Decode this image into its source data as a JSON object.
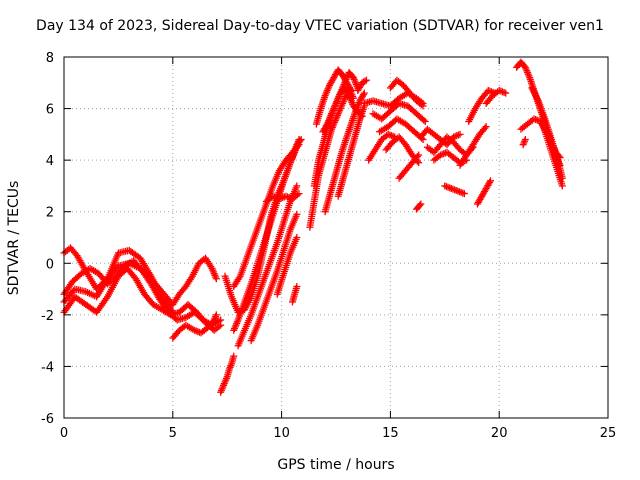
{
  "chart_data": {
    "type": "scatter",
    "title": "Day 134 of 2023, Sidereal Day-to-day VTEC variation (SDTVAR) for receiver ven1",
    "xlabel": "GPS time / hours",
    "ylabel": "SDTVAR / TECUs",
    "xlim": [
      0,
      25
    ],
    "ylim": [
      -6,
      8
    ],
    "x_ticks": [
      0,
      5,
      10,
      15,
      20,
      25
    ],
    "x_tick_labels": [
      "0",
      "5",
      "10",
      "15",
      "20",
      "25"
    ],
    "y_ticks": [
      -6,
      -4,
      -2,
      0,
      2,
      4,
      6,
      8
    ],
    "y_tick_labels": [
      "-6",
      "-4",
      "-2",
      "0",
      "2",
      "4",
      "6",
      "8"
    ],
    "grid": true,
    "grid_style": "dotted",
    "marker": "plus",
    "series_color": "#ff0000",
    "series": [
      {
        "tracks": [
          {
            "x": [
              0.0,
              0.3,
              0.6,
              1.0,
              1.5,
              2.0,
              2.5,
              3.0,
              3.5,
              4.0,
              4.5,
              5.0,
              5.3,
              5.6,
              5.9,
              6.2,
              6.5,
              6.8,
              7.0
            ],
            "y": [
              0.4,
              0.6,
              0.3,
              -0.3,
              -1.0,
              -0.6,
              -0.1,
              0.0,
              -0.2,
              -0.6,
              -1.1,
              -1.6,
              -1.2,
              -0.9,
              -0.5,
              0.0,
              0.2,
              -0.2,
              -0.6
            ]
          },
          {
            "x": [
              0.0,
              0.4,
              0.8,
              1.2,
              1.6,
              2.0,
              2.4,
              2.8,
              3.2,
              3.6,
              4.0,
              4.4,
              4.8,
              5.2,
              5.6,
              6.0,
              6.4,
              6.8,
              7.2
            ],
            "y": [
              -1.2,
              -0.7,
              -0.4,
              -0.2,
              -0.4,
              -0.8,
              -0.5,
              -0.1,
              0.1,
              -0.3,
              -0.8,
              -1.4,
              -1.9,
              -2.2,
              -2.1,
              -1.9,
              -2.2,
              -2.4,
              -2.2
            ]
          },
          {
            "x": [
              0.0,
              0.5,
              1.0,
              1.5,
              2.0,
              2.5,
              2.9,
              3.3,
              3.7,
              4.1,
              4.5,
              4.9,
              5.3,
              5.7,
              6.1,
              6.5,
              6.9,
              7.2
            ],
            "y": [
              -1.9,
              -1.3,
              -1.6,
              -1.9,
              -1.3,
              -0.5,
              -0.2,
              -0.6,
              -1.2,
              -1.6,
              -1.8,
              -2.0,
              -1.9,
              -1.6,
              -1.9,
              -2.3,
              -2.6,
              -2.4
            ]
          },
          {
            "x": [
              0.0,
              0.5,
              1.0,
              1.5,
              2.0,
              2.5,
              3.0,
              3.5,
              4.0,
              4.5,
              5.0
            ],
            "y": [
              -1.5,
              -1.0,
              -1.1,
              -1.3,
              -0.6,
              0.4,
              0.5,
              0.2,
              -0.5,
              -1.3,
              -1.9
            ]
          },
          {
            "x": [
              5.0,
              5.3,
              5.6,
              6.0,
              6.3,
              6.6,
              6.9,
              7.0
            ],
            "y": [
              -2.9,
              -2.6,
              -2.4,
              -2.6,
              -2.7,
              -2.5,
              -2.2,
              -2.0
            ]
          },
          {
            "x": [
              7.2,
              7.3,
              7.4,
              7.5,
              7.6,
              7.7,
              7.8
            ],
            "y": [
              -5.0,
              -4.8,
              -4.6,
              -4.4,
              -4.1,
              -3.9,
              -3.6
            ]
          },
          {
            "x": [
              7.4,
              7.7,
              8.0,
              8.3,
              8.6,
              8.9,
              9.2,
              9.5,
              9.8,
              10.1,
              10.4,
              10.6,
              10.8
            ],
            "y": [
              -0.5,
              -1.3,
              -1.9,
              -1.8,
              -1.3,
              -0.5,
              0.6,
              1.8,
              2.6,
              3.2,
              3.9,
              4.3,
              4.8
            ]
          },
          {
            "x": [
              7.8,
              8.0,
              8.3,
              8.6,
              8.9,
              9.2,
              9.5,
              9.8,
              10.1,
              10.4,
              10.7,
              10.9
            ],
            "y": [
              -2.6,
              -2.2,
              -1.5,
              -0.8,
              0.0,
              0.8,
              1.6,
              2.4,
              3.2,
              3.9,
              4.6,
              4.8
            ]
          },
          {
            "x": [
              7.8,
              8.1,
              8.4,
              8.7,
              9.0,
              9.3,
              9.6,
              9.9,
              10.2,
              10.5,
              10.8
            ],
            "y": [
              -0.9,
              -0.5,
              0.2,
              0.9,
              1.6,
              2.3,
              3.0,
              3.6,
              4.0,
              4.3,
              4.6
            ]
          },
          {
            "x": [
              8.0,
              8.3,
              8.6,
              8.9,
              9.2,
              9.5,
              9.8,
              10.1,
              10.4,
              10.7
            ],
            "y": [
              -3.2,
              -2.6,
              -2.0,
              -1.3,
              -0.6,
              0.1,
              0.8,
              1.6,
              2.4,
              3.0
            ]
          },
          {
            "x": [
              8.6,
              8.9,
              9.2,
              9.5,
              9.8,
              10.1,
              10.4,
              10.7
            ],
            "y": [
              -3.0,
              -2.4,
              -1.7,
              -1.0,
              -0.3,
              0.5,
              1.3,
              1.9
            ]
          },
          {
            "x": [
              9.3,
              9.6,
              9.9,
              10.2,
              10.5,
              10.8
            ],
            "y": [
              2.4,
              2.6,
              2.5,
              2.6,
              2.5,
              2.7
            ]
          },
          {
            "x": [
              9.8,
              10.1,
              10.4,
              10.7
            ],
            "y": [
              -1.2,
              -0.4,
              0.4,
              1.0
            ]
          },
          {
            "x": [
              10.5,
              10.6,
              10.7
            ],
            "y": [
              -1.5,
              -1.2,
              -0.9
            ]
          },
          {
            "x": [
              11.3,
              11.5,
              11.7,
              11.9,
              12.1,
              12.3,
              12.5,
              12.7,
              12.9,
              13.1,
              13.3
            ],
            "y": [
              1.4,
              2.4,
              3.4,
              4.0,
              4.6,
              5.2,
              5.6,
              6.0,
              6.4,
              6.8,
              6.4
            ]
          },
          {
            "x": [
              11.5,
              11.7,
              11.9,
              12.1,
              12.3,
              12.5,
              12.7,
              12.9,
              13.1,
              13.3,
              13.5
            ],
            "y": [
              3.0,
              4.0,
              4.6,
              5.3,
              5.8,
              6.2,
              6.6,
              7.0,
              7.4,
              7.2,
              6.8
            ]
          },
          {
            "x": [
              11.6,
              11.8,
              12.0,
              12.2,
              12.4,
              12.6,
              12.8,
              13.0,
              13.2
            ],
            "y": [
              5.4,
              6.0,
              6.5,
              6.9,
              7.2,
              7.5,
              7.3,
              7.0,
              6.7
            ]
          },
          {
            "x": [
              11.9,
              12.1,
              12.3,
              12.5,
              12.7,
              12.9,
              13.1,
              13.3,
              13.5,
              13.7
            ],
            "y": [
              5.1,
              5.4,
              5.8,
              6.2,
              6.6,
              6.8,
              6.5,
              6.1,
              5.9,
              5.7
            ]
          },
          {
            "x": [
              12.0,
              12.2,
              12.4,
              12.6,
              12.8,
              13.0,
              13.2,
              13.4,
              13.6,
              13.8
            ],
            "y": [
              2.0,
              2.6,
              3.2,
              3.8,
              4.4,
              4.9,
              5.4,
              5.9,
              6.3,
              6.6
            ]
          },
          {
            "x": [
              12.6,
              12.8,
              13.0,
              13.2,
              13.4,
              13.6,
              13.8
            ],
            "y": [
              2.6,
              3.2,
              3.8,
              4.4,
              5.0,
              5.6,
              6.1
            ]
          },
          {
            "x": [
              13.5,
              13.7,
              13.9
            ],
            "y": [
              6.7,
              7.0,
              7.1
            ]
          },
          {
            "x": [
              13.8,
              14.2,
              14.6,
              15.0,
              15.4,
              15.8,
              16.2,
              16.5
            ],
            "y": [
              6.2,
              6.3,
              6.2,
              6.1,
              6.4,
              6.6,
              6.4,
              6.2
            ]
          },
          {
            "x": [
              14.2,
              14.6,
              15.0,
              15.4,
              15.8,
              16.2,
              16.6
            ],
            "y": [
              5.8,
              5.6,
              5.9,
              6.2,
              6.1,
              5.8,
              5.5
            ]
          },
          {
            "x": [
              14.5,
              14.9,
              15.3,
              15.7,
              16.1,
              16.5
            ],
            "y": [
              5.1,
              5.3,
              5.6,
              5.4,
              5.1,
              4.8
            ]
          },
          {
            "x": [
              14.0,
              14.3,
              14.6,
              14.9,
              15.2
            ],
            "y": [
              4.0,
              4.4,
              4.8,
              5.0,
              4.9
            ]
          },
          {
            "x": [
              14.8,
              15.1,
              15.4,
              15.7,
              16.0,
              16.3
            ],
            "y": [
              4.4,
              4.7,
              4.9,
              4.6,
              4.2,
              3.9
            ]
          },
          {
            "x": [
              15.0,
              15.3,
              15.6,
              15.9,
              16.2,
              16.5
            ],
            "y": [
              6.8,
              7.1,
              6.9,
              6.6,
              6.3,
              6.1
            ]
          },
          {
            "x": [
              15.4,
              15.7,
              16.0,
              16.3
            ],
            "y": [
              3.3,
              3.6,
              3.9,
              4.2
            ]
          },
          {
            "x": [
              16.2,
              16.3,
              16.4
            ],
            "y": [
              2.1,
              2.2,
              2.3
            ]
          },
          {
            "x": [
              16.4,
              16.7,
              17.0,
              17.3,
              17.6,
              17.9,
              18.2
            ],
            "y": [
              4.9,
              5.2,
              5.0,
              4.8,
              4.6,
              4.9,
              5.0
            ]
          },
          {
            "x": [
              16.7,
              17.0,
              17.3,
              17.6,
              17.9,
              18.2,
              18.5,
              18.8
            ],
            "y": [
              4.5,
              4.3,
              4.6,
              4.9,
              4.7,
              4.4,
              4.2,
              4.5
            ]
          },
          {
            "x": [
              17.0,
              17.3,
              17.6,
              17.9,
              18.2,
              18.5
            ],
            "y": [
              4.0,
              4.2,
              4.3,
              4.1,
              3.9,
              4.0
            ]
          },
          {
            "x": [
              17.5,
              17.8,
              18.1,
              18.4
            ],
            "y": [
              3.0,
              2.9,
              2.8,
              2.7
            ]
          },
          {
            "x": [
              18.2,
              18.5,
              18.8,
              19.1,
              19.4
            ],
            "y": [
              3.8,
              4.2,
              4.6,
              5.0,
              5.3
            ]
          },
          {
            "x": [
              18.6,
              18.9,
              19.2,
              19.5,
              19.8
            ],
            "y": [
              5.5,
              6.0,
              6.4,
              6.7,
              6.6
            ]
          },
          {
            "x": [
              19.0,
              19.2,
              19.4,
              19.6
            ],
            "y": [
              2.3,
              2.6,
              2.9,
              3.2
            ]
          },
          {
            "x": [
              19.4,
              19.7,
              20.0,
              20.3
            ],
            "y": [
              6.2,
              6.5,
              6.7,
              6.6
            ]
          },
          {
            "x": [
              20.8,
              21.0,
              21.2,
              21.4,
              21.6,
              21.8,
              22.0,
              22.2,
              22.4,
              22.6,
              22.8
            ],
            "y": [
              7.6,
              7.8,
              7.6,
              7.2,
              6.7,
              6.2,
              5.7,
              5.2,
              4.7,
              4.3,
              4.1
            ]
          },
          {
            "x": [
              21.0,
              21.3,
              21.6,
              21.9,
              22.2,
              22.5,
              22.8
            ],
            "y": [
              5.2,
              5.4,
              5.6,
              5.5,
              5.0,
              4.4,
              3.8
            ]
          },
          {
            "x": [
              21.5,
              21.8,
              22.1,
              22.4,
              22.7,
              22.9
            ],
            "y": [
              6.8,
              6.3,
              5.6,
              4.8,
              4.0,
              3.3
            ]
          },
          {
            "x": [
              22.0,
              22.3,
              22.6,
              22.9
            ],
            "y": [
              5.4,
              4.6,
              3.8,
              3.0
            ]
          },
          {
            "x": [
              21.1,
              21.2
            ],
            "y": [
              4.6,
              4.8
            ]
          }
        ]
      }
    ]
  }
}
